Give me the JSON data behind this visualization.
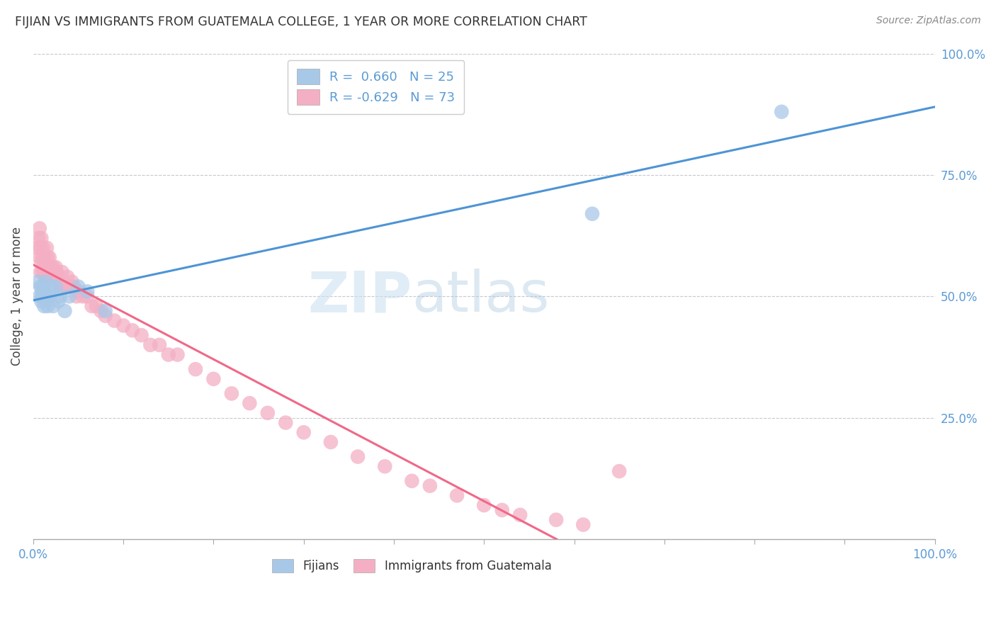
{
  "title": "FIJIAN VS IMMIGRANTS FROM GUATEMALA COLLEGE, 1 YEAR OR MORE CORRELATION CHART",
  "source": "Source: ZipAtlas.com",
  "ylabel": "College, 1 year or more",
  "xmin": 0.0,
  "xmax": 1.0,
  "ymin": 0.0,
  "ymax": 1.0,
  "fijian_R": 0.66,
  "fijian_N": 25,
  "guatemala_R": -0.629,
  "guatemala_N": 73,
  "fijian_color": "#a8c8e8",
  "guatemala_color": "#f4afc4",
  "fijian_line_color": "#4d94d5",
  "guatemala_line_color": "#f06888",
  "legend_label_1": "Fijians",
  "legend_label_2": "Immigrants from Guatemala",
  "watermark_zip": "ZIP",
  "watermark_atlas": "atlas",
  "fijian_x": [
    0.005,
    0.007,
    0.008,
    0.009,
    0.01,
    0.01,
    0.011,
    0.012,
    0.013,
    0.014,
    0.015,
    0.016,
    0.018,
    0.02,
    0.022,
    0.025,
    0.028,
    0.03,
    0.035,
    0.04,
    0.05,
    0.06,
    0.08,
    0.62,
    0.83
  ],
  "fijian_y": [
    0.53,
    0.5,
    0.52,
    0.49,
    0.51,
    0.5,
    0.52,
    0.48,
    0.5,
    0.53,
    0.5,
    0.48,
    0.5,
    0.52,
    0.48,
    0.52,
    0.49,
    0.5,
    0.47,
    0.5,
    0.52,
    0.51,
    0.47,
    0.67,
    0.88
  ],
  "guatemala_x": [
    0.005,
    0.006,
    0.007,
    0.007,
    0.008,
    0.008,
    0.009,
    0.009,
    0.01,
    0.01,
    0.011,
    0.011,
    0.012,
    0.012,
    0.013,
    0.013,
    0.014,
    0.015,
    0.015,
    0.016,
    0.016,
    0.017,
    0.018,
    0.018,
    0.019,
    0.02,
    0.022,
    0.023,
    0.025,
    0.026,
    0.028,
    0.03,
    0.032,
    0.035,
    0.038,
    0.04,
    0.043,
    0.045,
    0.048,
    0.05,
    0.055,
    0.06,
    0.065,
    0.07,
    0.075,
    0.08,
    0.09,
    0.1,
    0.11,
    0.12,
    0.13,
    0.14,
    0.15,
    0.16,
    0.18,
    0.2,
    0.22,
    0.24,
    0.26,
    0.28,
    0.3,
    0.33,
    0.36,
    0.39,
    0.42,
    0.44,
    0.47,
    0.5,
    0.52,
    0.54,
    0.58,
    0.61,
    0.65
  ],
  "guatemala_y": [
    0.6,
    0.62,
    0.58,
    0.64,
    0.55,
    0.6,
    0.57,
    0.62,
    0.55,
    0.58,
    0.56,
    0.6,
    0.55,
    0.58,
    0.54,
    0.57,
    0.56,
    0.56,
    0.6,
    0.55,
    0.58,
    0.56,
    0.55,
    0.58,
    0.54,
    0.56,
    0.56,
    0.54,
    0.56,
    0.55,
    0.54,
    0.52,
    0.55,
    0.52,
    0.54,
    0.52,
    0.53,
    0.52,
    0.5,
    0.51,
    0.5,
    0.5,
    0.48,
    0.48,
    0.47,
    0.46,
    0.45,
    0.44,
    0.43,
    0.42,
    0.4,
    0.4,
    0.38,
    0.38,
    0.35,
    0.33,
    0.3,
    0.28,
    0.26,
    0.24,
    0.22,
    0.2,
    0.17,
    0.15,
    0.12,
    0.11,
    0.09,
    0.07,
    0.06,
    0.05,
    0.04,
    0.03,
    0.14
  ]
}
